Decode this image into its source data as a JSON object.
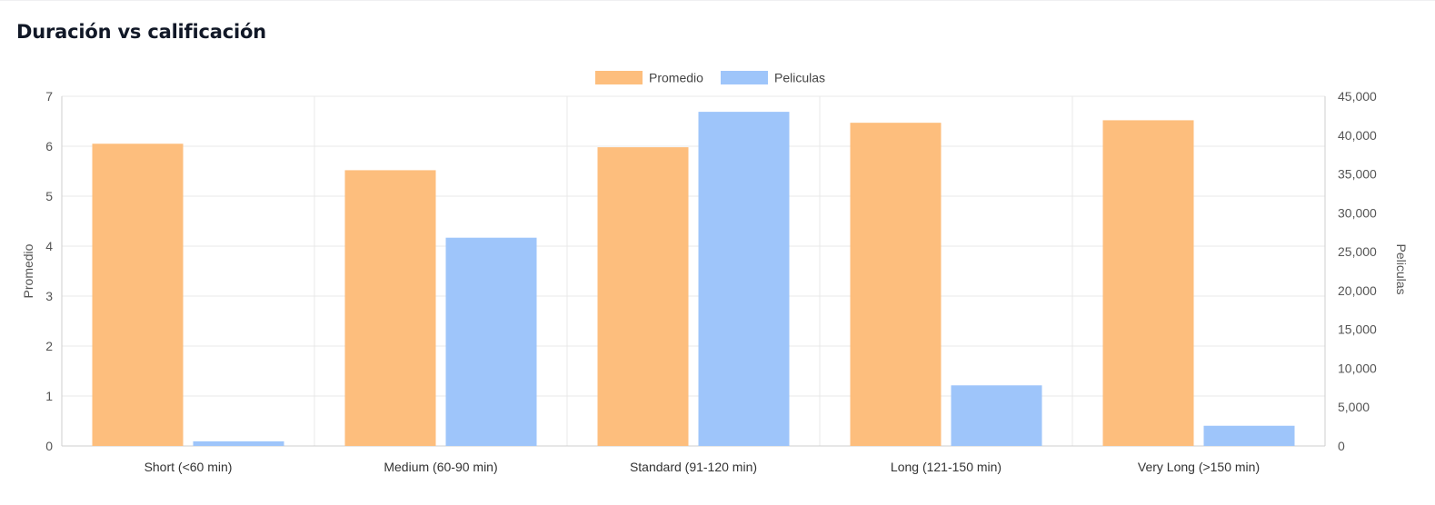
{
  "title": "Duración vs calificación",
  "colors": {
    "promedio": "#fdbe7d",
    "peliculas": "#9ec5fa",
    "grid": "#e8e8e8",
    "axis": "#cfcfcf"
  },
  "chart_data": {
    "type": "bar",
    "categories": [
      "Short (<60 min)",
      "Medium (60-90 min)",
      "Standard (91-120 min)",
      "Long (121-150 min)",
      "Very Long (>150 min)"
    ],
    "series": [
      {
        "name": "Promedio",
        "axis": "left",
        "values": [
          6.05,
          5.52,
          5.98,
          6.47,
          6.52
        ]
      },
      {
        "name": "Peliculas",
        "axis": "right",
        "values": [
          600,
          26800,
          43000,
          7800,
          2600
        ]
      }
    ],
    "y_left": {
      "label": "Promedio",
      "range": [
        0,
        7
      ],
      "ticks": [
        "0",
        "1",
        "2",
        "3",
        "4",
        "5",
        "6",
        "7"
      ]
    },
    "y_right": {
      "label": "Peliculas",
      "range": [
        0,
        45000
      ],
      "ticks": [
        "0",
        "5,000",
        "10,000",
        "15,000",
        "20,000",
        "25,000",
        "30,000",
        "35,000",
        "40,000",
        "45,000"
      ]
    },
    "legend": "top-center",
    "grid": true
  }
}
